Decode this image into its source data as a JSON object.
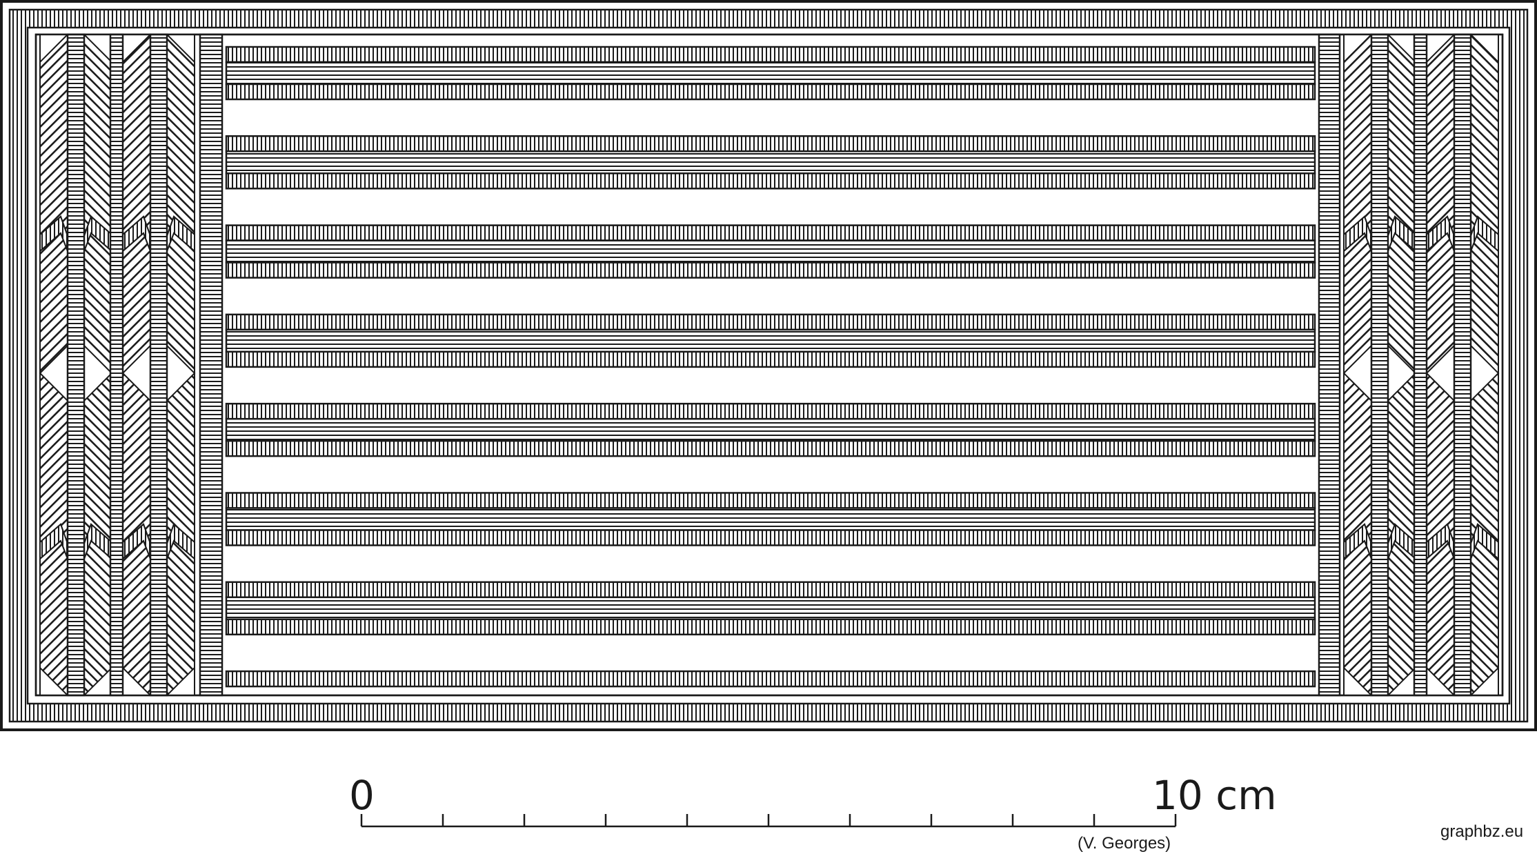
{
  "drawing": {
    "scale": {
      "start_label": "0",
      "end_label": "10 cm",
      "author": "(V. Georges)",
      "divisions": 10
    },
    "credit": "graphbz.eu",
    "pattern": {
      "horizontal_bands": 8,
      "side_columns_per_side": 2,
      "motifs_per_column": [
        "hatched-notch",
        "diamond",
        "hatched-notch"
      ]
    },
    "colors": {
      "ink": "#1a1a1a",
      "paper": "#ffffff"
    }
  }
}
